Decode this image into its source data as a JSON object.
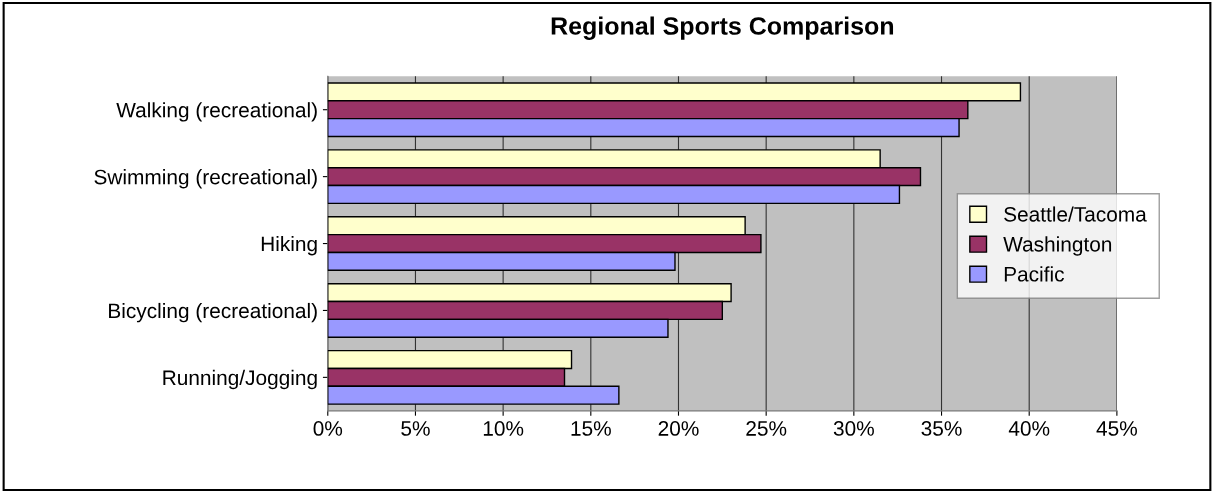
{
  "chart_data": {
    "type": "bar",
    "orientation": "horizontal",
    "title": "Regional Sports Comparison",
    "categories": [
      "Walking (recreational)",
      "Swimming (recreational)",
      "Hiking",
      "Bicycling (recreational)",
      "Running/Jogging"
    ],
    "series": [
      {
        "name": "Seattle/Tacoma",
        "color": "#ffffcc",
        "values": [
          39.5,
          31.5,
          23.8,
          23.0,
          13.9
        ]
      },
      {
        "name": "Washington",
        "color": "#993366",
        "values": [
          36.5,
          33.8,
          24.7,
          22.5,
          13.5
        ]
      },
      {
        "name": "Pacific",
        "color": "#9999ff",
        "values": [
          36.0,
          32.6,
          19.8,
          19.4,
          16.6
        ]
      }
    ],
    "xlim": [
      0,
      45
    ],
    "xticks": [
      {
        "value": 0,
        "label": "0%"
      },
      {
        "value": 5,
        "label": "5%"
      },
      {
        "value": 10,
        "label": "10%"
      },
      {
        "value": 15,
        "label": "15%"
      },
      {
        "value": 20,
        "label": "20%"
      },
      {
        "value": 25,
        "label": "25%"
      },
      {
        "value": 30,
        "label": "30%"
      },
      {
        "value": 35,
        "label": "35%"
      },
      {
        "value": 40,
        "label": "40%"
      },
      {
        "value": 45,
        "label": "45%"
      }
    ],
    "grid": "x",
    "legend": "right"
  }
}
